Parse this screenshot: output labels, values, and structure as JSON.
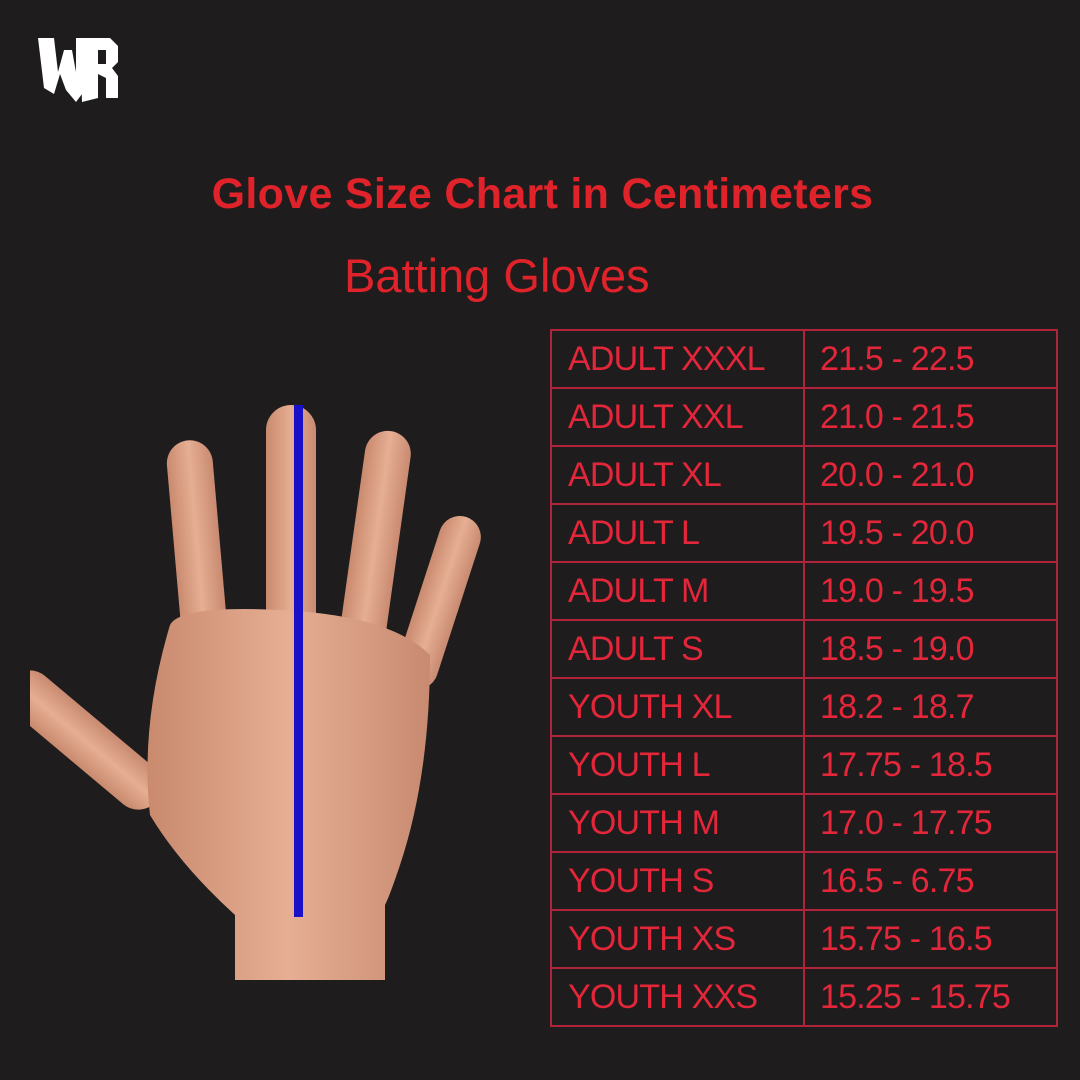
{
  "brand": {
    "logo_text": "WR"
  },
  "header": {
    "title": "Glove Size Chart in Centimeters",
    "subtitle": "Batting Gloves"
  },
  "colors": {
    "background": "#1e1c1c",
    "accent": "#e0232b",
    "measure_line": "#1a10c8"
  },
  "illustration": {
    "icon": "hand-measure-icon"
  },
  "size_table": {
    "unit": "cm",
    "rows": [
      {
        "size": "ADULT XXXL",
        "range": "21.5 - 22.5"
      },
      {
        "size": "ADULT XXL",
        "range": "21.0 - 21.5"
      },
      {
        "size": "ADULT XL",
        "range": "20.0 - 21.0"
      },
      {
        "size": "ADULT L",
        "range": "19.5 - 20.0"
      },
      {
        "size": "ADULT M",
        "range": "19.0 - 19.5"
      },
      {
        "size": "ADULT S",
        "range": "18.5 - 19.0"
      },
      {
        "size": "YOUTH XL",
        "range": "18.2 - 18.7"
      },
      {
        "size": "YOUTH L",
        "range": "17.75 - 18.5"
      },
      {
        "size": "YOUTH M",
        "range": "17.0 - 17.75"
      },
      {
        "size": "YOUTH S",
        "range": "16.5 - 6.75"
      },
      {
        "size": "YOUTH XS",
        "range": "15.75 - 16.5"
      },
      {
        "size": "YOUTH XXS",
        "range": "15.25 - 15.75"
      }
    ]
  }
}
